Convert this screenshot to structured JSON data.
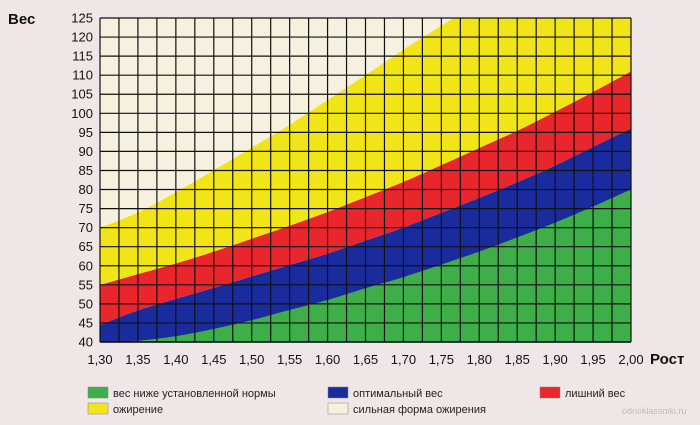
{
  "chart_data": {
    "type": "area",
    "xlabel": "Рост",
    "ylabel": "Вес",
    "xlim": [
      1.3,
      2.0
    ],
    "ylim": [
      40,
      125
    ],
    "x_tick_labels": [
      "1,30",
      "1,35",
      "1,40",
      "1,45",
      "1,50",
      "1,55",
      "1,60",
      "1,65",
      "1,70",
      "1,75",
      "1,80",
      "1,85",
      "1,90",
      "1,95",
      "2,00"
    ],
    "y_tick_labels": [
      "40",
      "45",
      "50",
      "55",
      "60",
      "65",
      "70",
      "75",
      "80",
      "85",
      "90",
      "95",
      "100",
      "105",
      "110",
      "115",
      "120",
      "125"
    ],
    "x_ticks": [
      1.3,
      1.35,
      1.4,
      1.45,
      1.5,
      1.55,
      1.6,
      1.65,
      1.7,
      1.75,
      1.8,
      1.85,
      1.9,
      1.95,
      2.0
    ],
    "y_ticks": [
      40,
      45,
      50,
      55,
      60,
      65,
      70,
      75,
      80,
      85,
      90,
      95,
      100,
      105,
      110,
      115,
      120,
      125
    ],
    "grid": true,
    "x_samples": [
      1.3,
      1.35,
      1.4,
      1.45,
      1.5,
      1.55,
      1.6,
      1.65,
      1.7,
      1.75,
      1.8,
      1.85,
      1.9,
      1.95,
      2.0
    ],
    "boundaries": [
      {
        "name": "underweight_optimal",
        "y": [
          39.7,
          40.3,
          41.5,
          43.4,
          45.7,
          48.4,
          51.0,
          54.1,
          57.0,
          60.3,
          63.7,
          67.4,
          71.3,
          75.5,
          80.0
        ]
      },
      {
        "name": "optimal_excess",
        "y": [
          44.5,
          48.3,
          51.3,
          54.2,
          57.2,
          60.2,
          63.2,
          66.6,
          70.0,
          73.9,
          77.8,
          81.9,
          86.3,
          91.2,
          96.0
        ]
      },
      {
        "name": "excess_obesity",
        "y": [
          55.0,
          57.8,
          60.6,
          63.7,
          67.1,
          70.5,
          74.1,
          78.0,
          82.0,
          86.4,
          90.9,
          95.4,
          100.4,
          105.6,
          111.0
        ]
      },
      {
        "name": "obesity_severe",
        "y": [
          70.0,
          74.0,
          79.3,
          85.1,
          91.0,
          97.0,
          103.5,
          110.0,
          116.7,
          123.0,
          129.3,
          136.0,
          142.7,
          149.4,
          156.2
        ]
      }
    ],
    "bands": [
      {
        "key": "underweight",
        "color": "#3eae48",
        "from": "bottom",
        "to": "underweight_optimal"
      },
      {
        "key": "optimal",
        "color": "#1a2b9e",
        "from": "underweight_optimal",
        "to": "optimal_excess"
      },
      {
        "key": "excess",
        "color": "#e8262c",
        "from": "optimal_excess",
        "to": "excess_obesity"
      },
      {
        "key": "obesity",
        "color": "#f2e517",
        "from": "excess_obesity",
        "to": "obesity_severe"
      },
      {
        "key": "severe",
        "color": "#f6f1df",
        "from": "obesity_severe",
        "to": "top"
      }
    ],
    "legend": [
      {
        "label": "вес ниже установленной нормы",
        "color": "#3eae48"
      },
      {
        "label": "оптимальный вес",
        "color": "#1a2b9e"
      },
      {
        "label": "лишний вес",
        "color": "#e8262c"
      },
      {
        "label": "ожирение",
        "color": "#f2e517"
      },
      {
        "label": "сильная форма ожирения",
        "color": "#f6f1df"
      }
    ],
    "legend_placement": "bottom"
  },
  "watermark": "odnoklassniki.ru"
}
